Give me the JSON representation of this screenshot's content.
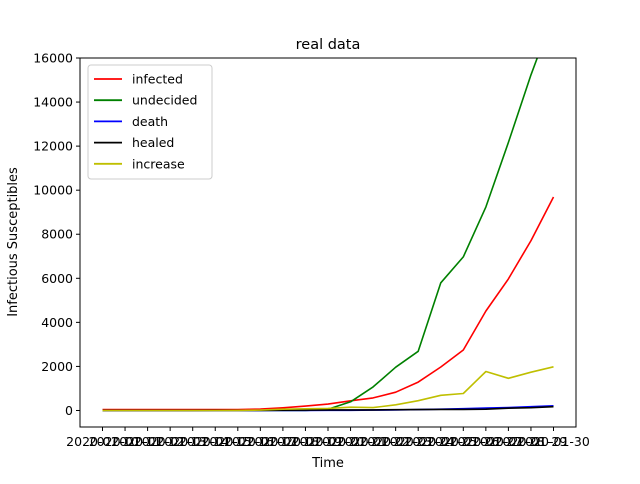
{
  "chart_data": {
    "type": "line",
    "title": "real data",
    "xlabel": "Time",
    "ylabel": "Infectious Susceptibles",
    "x": [
      "2020-01-10",
      "2020-01-11",
      "2020-01-12",
      "2020-01-13",
      "2020-01-14",
      "2020-01-15",
      "2020-01-16",
      "2020-01-17",
      "2020-01-18",
      "2020-01-19",
      "2020-01-20",
      "2020-01-21",
      "2020-01-22",
      "2020-01-23",
      "2020-01-24",
      "2020-01-25",
      "2020-01-26",
      "2020-01-27",
      "2020-01-28",
      "2020-01-29",
      "2020-01-30"
    ],
    "y_ticks": [
      0,
      2000,
      4000,
      6000,
      8000,
      10000,
      12000,
      14000,
      16000
    ],
    "ylim": [
      -750,
      16000
    ],
    "grid": false,
    "legend_position": "top-left",
    "series": [
      {
        "name": "infected",
        "color": "#ff0000",
        "values": [
          41,
          41,
          41,
          41,
          41,
          41,
          45,
          62,
          121,
          198,
          291,
          440,
          571,
          830,
          1287,
          1975,
          2744,
          4515,
          5974,
          7711,
          9692
        ]
      },
      {
        "name": "undecided",
        "color": "#008000",
        "values": [
          0,
          0,
          0,
          0,
          0,
          0,
          0,
          0,
          0,
          0,
          54,
          393,
          1072,
          1965,
          2684,
          5794,
          6973,
          9239,
          12167,
          15238,
          17988
        ]
      },
      {
        "name": "death",
        "color": "#0000ff",
        "values": [
          1,
          1,
          1,
          1,
          1,
          1,
          2,
          2,
          2,
          3,
          6,
          9,
          17,
          25,
          41,
          56,
          80,
          106,
          132,
          170,
          213
        ]
      },
      {
        "name": "healed",
        "color": "#000000",
        "values": [
          2,
          2,
          3,
          3,
          3,
          7,
          9,
          9,
          12,
          17,
          25,
          25,
          28,
          34,
          38,
          49,
          51,
          60,
          103,
          124,
          171
        ]
      },
      {
        "name": "increase",
        "color": "#bfbf00",
        "values": [
          0,
          0,
          0,
          0,
          0,
          0,
          4,
          17,
          59,
          77,
          93,
          149,
          131,
          259,
          444,
          688,
          769,
          1771,
          1459,
          1737,
          1982
        ]
      }
    ]
  }
}
